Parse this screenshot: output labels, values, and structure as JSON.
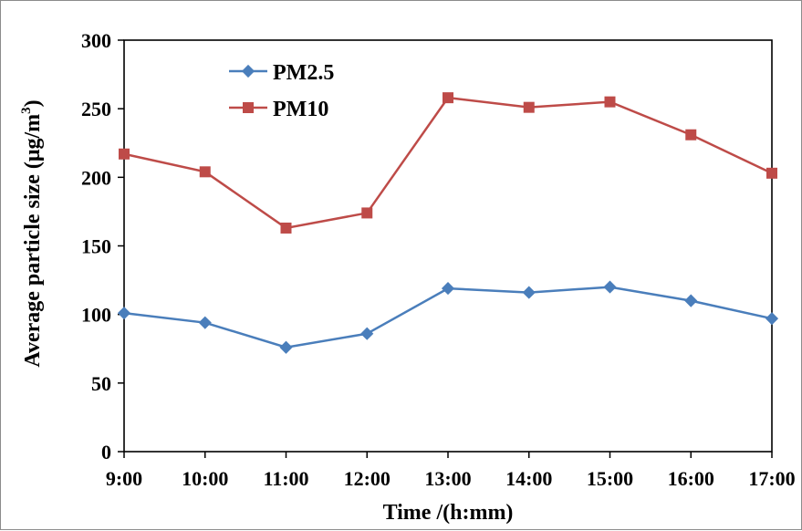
{
  "chart_data": {
    "type": "line",
    "xlabel": "Time /(h:mm)",
    "ylabel": "Average particle size (μg/m",
    "ylabel_sup": "3",
    "ylabel_close": ")",
    "categories": [
      "9:00",
      "10:00",
      "11:00",
      "12:00",
      "13:00",
      "14:00",
      "15:00",
      "16:00",
      "17:00"
    ],
    "ylim": [
      0,
      300
    ],
    "yticks": [
      "0",
      "50",
      "100",
      "150",
      "200",
      "250",
      "300"
    ],
    "grid": false,
    "legend": "top-left",
    "series": [
      {
        "name": "PM2.5",
        "color": "#4a7ebb",
        "marker": "diamond",
        "values": [
          101,
          94,
          76,
          86,
          119,
          116,
          120,
          110,
          97
        ]
      },
      {
        "name": "PM10",
        "color": "#be4b48",
        "marker": "square",
        "values": [
          217,
          204,
          163,
          174,
          258,
          251,
          255,
          231,
          203
        ]
      }
    ]
  }
}
